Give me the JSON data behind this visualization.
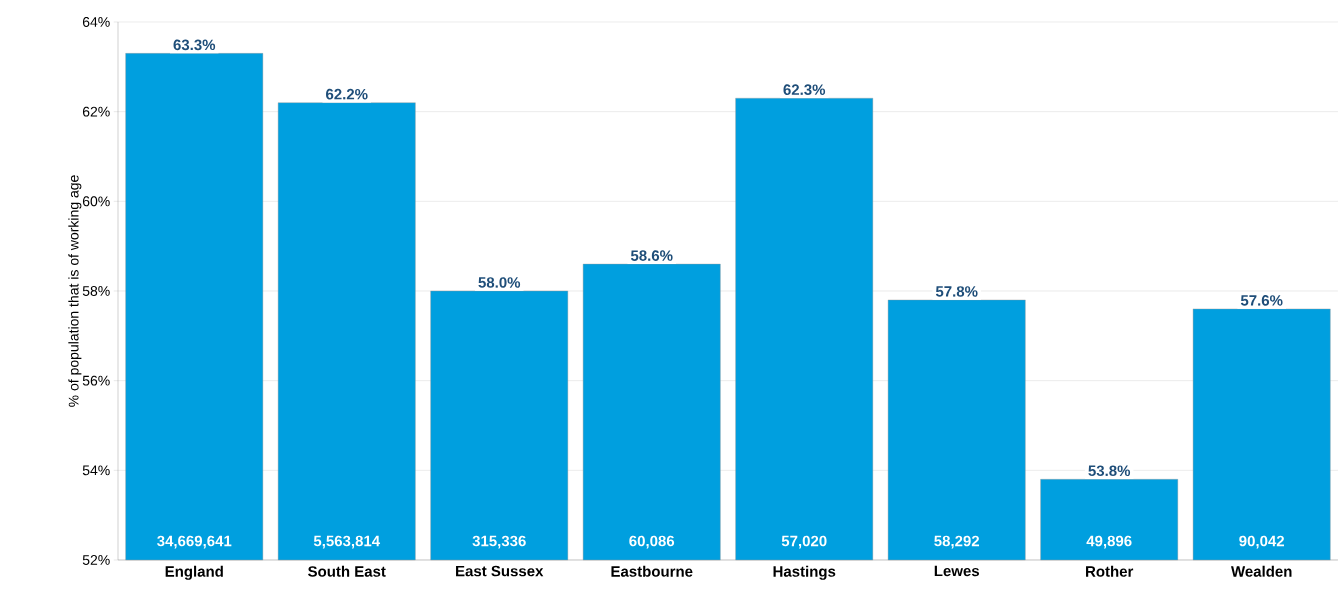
{
  "chart_data": {
    "type": "bar",
    "ylabel": "% of population that is of working age",
    "categories": [
      "England",
      "South East",
      "East Sussex",
      "Eastbourne",
      "Hastings",
      "Lewes",
      "Rother",
      "Wealden"
    ],
    "values": [
      63.3,
      62.2,
      58.0,
      58.6,
      62.3,
      57.8,
      53.8,
      57.6
    ],
    "value_labels": [
      "63.3%",
      "62.2%",
      "58.0%",
      "58.6%",
      "62.3%",
      "57.8%",
      "53.8%",
      "57.6%"
    ],
    "color": "#009fdf",
    "ylim": [
      52,
      64
    ],
    "yticks": [
      {
        "value": 52,
        "label": "52%"
      },
      {
        "value": 54,
        "label": "54%"
      },
      {
        "value": 56,
        "label": "56%"
      },
      {
        "value": 58,
        "label": "58%"
      },
      {
        "value": 60,
        "label": "60%"
      },
      {
        "value": 62,
        "label": "62%"
      },
      {
        "value": 64,
        "label": "64%"
      }
    ],
    "grid": "y",
    "annotations": [
      {
        "text": "34,669,641",
        "x": "England",
        "y": 52
      },
      {
        "text": "5,563,814",
        "x": "South East",
        "y": 52
      },
      {
        "text": "315,336",
        "x": "East Sussex",
        "y": 52
      },
      {
        "text": "60,086",
        "x": "Eastbourne",
        "y": 52
      },
      {
        "text": "57,020",
        "x": "Hastings",
        "y": 52
      },
      {
        "text": "58,292",
        "x": "Lewes",
        "y": 52
      },
      {
        "text": "49,896",
        "x": "Rother",
        "y": 52
      },
      {
        "text": "90,042",
        "x": "Wealden",
        "y": 52
      }
    ]
  }
}
